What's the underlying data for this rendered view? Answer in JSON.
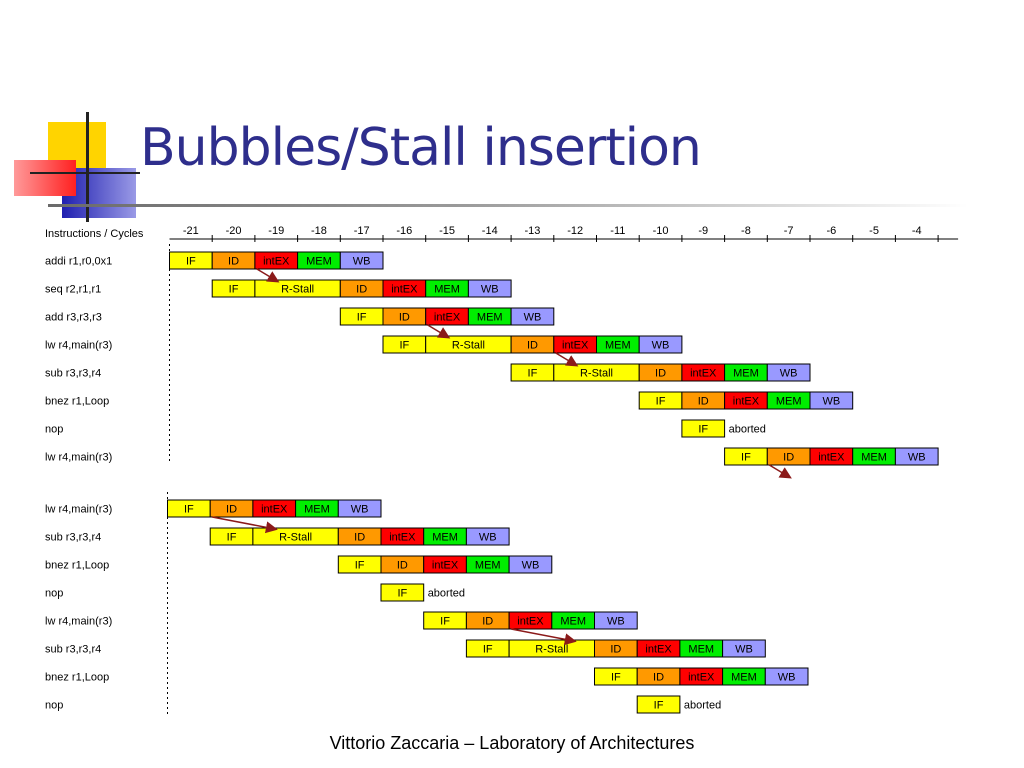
{
  "slide": {
    "title": "Bubbles/Stall insertion",
    "footer": "Vittorio Zaccaria – Laboratory of Architectures"
  },
  "diagram": {
    "header_label": "Instructions / Cycles",
    "cycles": [
      "-21",
      "-20",
      "-19",
      "-18",
      "-17",
      "-16",
      "-15",
      "-14",
      "-13",
      "-12",
      "-11",
      "-10",
      "-9",
      "-8",
      "-7",
      "-6",
      "-5",
      "-4"
    ],
    "stage_colors": {
      "IF": "#ffff00",
      "ID": "#ff9900",
      "intEX": "#ff0000",
      "MEM": "#00ee00",
      "WB": "#9999ff",
      "R-Stall": "#ffff00"
    },
    "arrow_color": "#8b1a1a",
    "blocks": [
      {
        "rows": [
          {
            "instr": "addi r1,r0,0x1",
            "stages": [
              {
                "s": "IF",
                "c": 0
              },
              {
                "s": "ID",
                "c": 1
              },
              {
                "s": "intEX",
                "c": 2
              },
              {
                "s": "MEM",
                "c": 3
              },
              {
                "s": "WB",
                "c": 4
              }
            ]
          },
          {
            "instr": "seq r2,r1,r1",
            "stages": [
              {
                "s": "IF",
                "c": 1
              },
              {
                "s": "R-Stall",
                "c": 2,
                "w": 2
              },
              {
                "s": "ID",
                "c": 4
              },
              {
                "s": "intEX",
                "c": 5
              },
              {
                "s": "MEM",
                "c": 6
              },
              {
                "s": "WB",
                "c": 7
              }
            ]
          },
          {
            "instr": "add r3,r3,r3",
            "stages": [
              {
                "s": "IF",
                "c": 4
              },
              {
                "s": "ID",
                "c": 5
              },
              {
                "s": "intEX",
                "c": 6
              },
              {
                "s": "MEM",
                "c": 7
              },
              {
                "s": "WB",
                "c": 8
              }
            ]
          },
          {
            "instr": "lw r4,main(r3)",
            "stages": [
              {
                "s": "IF",
                "c": 5
              },
              {
                "s": "R-Stall",
                "c": 6,
                "w": 2
              },
              {
                "s": "ID",
                "c": 8
              },
              {
                "s": "intEX",
                "c": 9
              },
              {
                "s": "MEM",
                "c": 10
              },
              {
                "s": "WB",
                "c": 11
              }
            ]
          },
          {
            "instr": "sub r3,r3,r4",
            "stages": [
              {
                "s": "IF",
                "c": 8
              },
              {
                "s": "R-Stall",
                "c": 9,
                "w": 2
              },
              {
                "s": "ID",
                "c": 11
              },
              {
                "s": "intEX",
                "c": 12
              },
              {
                "s": "MEM",
                "c": 13
              },
              {
                "s": "WB",
                "c": 14
              }
            ]
          },
          {
            "instr": "bnez r1,Loop",
            "stages": [
              {
                "s": "IF",
                "c": 11
              },
              {
                "s": "ID",
                "c": 12
              },
              {
                "s": "intEX",
                "c": 13
              },
              {
                "s": "MEM",
                "c": 14
              },
              {
                "s": "WB",
                "c": 15
              }
            ]
          },
          {
            "instr": "nop",
            "stages": [
              {
                "s": "IF",
                "c": 12
              }
            ],
            "note": "aborted"
          },
          {
            "instr": "lw r4,main(r3)",
            "stages": [
              {
                "s": "IF",
                "c": 13
              },
              {
                "s": "ID",
                "c": 14
              },
              {
                "s": "intEX",
                "c": 15
              },
              {
                "s": "MEM",
                "c": 16
              },
              {
                "s": "WB",
                "c": 17
              }
            ]
          }
        ],
        "arrows": [
          {
            "from_row": 0,
            "from_col": 2,
            "to_row": 1,
            "to_col": 2
          },
          {
            "from_row": 2,
            "from_col": 6,
            "to_row": 3,
            "to_col": 6
          },
          {
            "from_row": 3,
            "from_col": 9,
            "to_row": 4,
            "to_col": 9
          },
          {
            "from_row": 7,
            "from_col": 14,
            "to_row": 8,
            "to_col": 14
          }
        ]
      },
      {
        "rows": [
          {
            "instr": "lw r4,main(r3)",
            "stages": [
              {
                "s": "IF",
                "c": 0
              },
              {
                "s": "ID",
                "c": 1
              },
              {
                "s": "intEX",
                "c": 2
              },
              {
                "s": "MEM",
                "c": 3
              },
              {
                "s": "WB",
                "c": 4
              }
            ]
          },
          {
            "instr": "sub r3,r3,r4",
            "stages": [
              {
                "s": "IF",
                "c": 1
              },
              {
                "s": "R-Stall",
                "c": 2,
                "w": 2
              },
              {
                "s": "ID",
                "c": 4
              },
              {
                "s": "intEX",
                "c": 5
              },
              {
                "s": "MEM",
                "c": 6
              },
              {
                "s": "WB",
                "c": 7
              }
            ]
          },
          {
            "instr": "bnez r1,Loop",
            "stages": [
              {
                "s": "IF",
                "c": 4
              },
              {
                "s": "ID",
                "c": 5
              },
              {
                "s": "intEX",
                "c": 6
              },
              {
                "s": "MEM",
                "c": 7
              },
              {
                "s": "WB",
                "c": 8
              }
            ]
          },
          {
            "instr": "nop",
            "stages": [
              {
                "s": "IF",
                "c": 5
              }
            ],
            "note": "aborted"
          },
          {
            "instr": "lw r4,main(r3)",
            "stages": [
              {
                "s": "IF",
                "c": 6
              },
              {
                "s": "ID",
                "c": 7
              },
              {
                "s": "intEX",
                "c": 8
              },
              {
                "s": "MEM",
                "c": 9
              },
              {
                "s": "WB",
                "c": 10
              }
            ]
          },
          {
            "instr": "sub r3,r3,r4",
            "stages": [
              {
                "s": "IF",
                "c": 7
              },
              {
                "s": "R-Stall",
                "c": 8,
                "w": 2
              },
              {
                "s": "ID",
                "c": 10
              },
              {
                "s": "intEX",
                "c": 11
              },
              {
                "s": "MEM",
                "c": 12
              },
              {
                "s": "WB",
                "c": 13
              }
            ]
          },
          {
            "instr": "bnez r1,Loop",
            "stages": [
              {
                "s": "IF",
                "c": 10
              },
              {
                "s": "ID",
                "c": 11
              },
              {
                "s": "intEX",
                "c": 12
              },
              {
                "s": "MEM",
                "c": 13
              },
              {
                "s": "WB",
                "c": 14
              }
            ]
          },
          {
            "instr": "nop",
            "stages": [
              {
                "s": "IF",
                "c": 11
              }
            ],
            "note": "aborted"
          }
        ],
        "arrows": [
          {
            "from_row": 0,
            "from_col": 1,
            "to_row": 1,
            "to_col": 2
          },
          {
            "from_row": 4,
            "from_col": 8,
            "to_row": 5,
            "to_col": 9
          }
        ]
      }
    ]
  }
}
